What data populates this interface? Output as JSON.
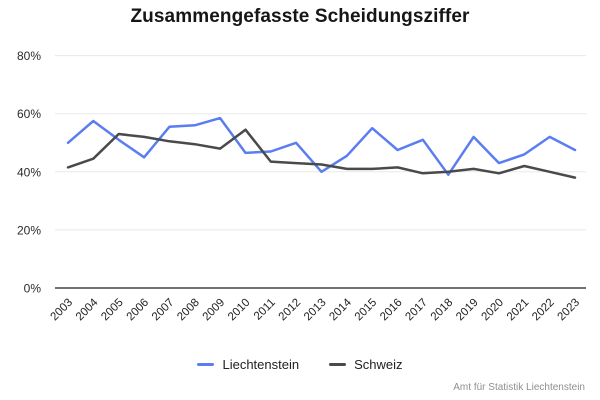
{
  "title": "Zusammengefasste Scheidungsziffer",
  "attribution": "Amt für Statistik Liechtenstein",
  "legend": {
    "items": [
      "Liechtenstein",
      "Schweiz"
    ]
  },
  "chart_data": {
    "type": "line",
    "title": "Zusammengefasste Scheidungsziffer",
    "x": [
      "2003",
      "2004",
      "2005",
      "2006",
      "2007",
      "2008",
      "2009",
      "2010",
      "2011",
      "2012",
      "2013",
      "2014",
      "2015",
      "2016",
      "2017",
      "2018",
      "2019",
      "2020",
      "2021",
      "2022",
      "2023"
    ],
    "series": [
      {
        "name": "Liechtenstein",
        "color": "#5b7df2",
        "values": [
          50,
          57.5,
          51,
          45,
          55.5,
          56,
          58.5,
          46.5,
          47,
          50,
          40,
          45.5,
          55,
          47.5,
          51,
          39,
          52,
          43,
          46,
          52,
          47.5
        ]
      },
      {
        "name": "Schweiz",
        "color": "#4a4a4a",
        "values": [
          41.5,
          44.5,
          53,
          52,
          50.5,
          49.5,
          48,
          54.5,
          43.5,
          43,
          42.5,
          41,
          41,
          41.5,
          39.5,
          40,
          41,
          39.5,
          42,
          40,
          38
        ]
      }
    ],
    "xlabel": "",
    "ylabel": "",
    "ylim": [
      0,
      80
    ],
    "y_tick_values": [
      0,
      20,
      40,
      60,
      80
    ],
    "y_tick_labels": [
      "0%",
      "20%",
      "40%",
      "60%",
      "80%"
    ],
    "grid": true,
    "legend_position": "bottom"
  }
}
